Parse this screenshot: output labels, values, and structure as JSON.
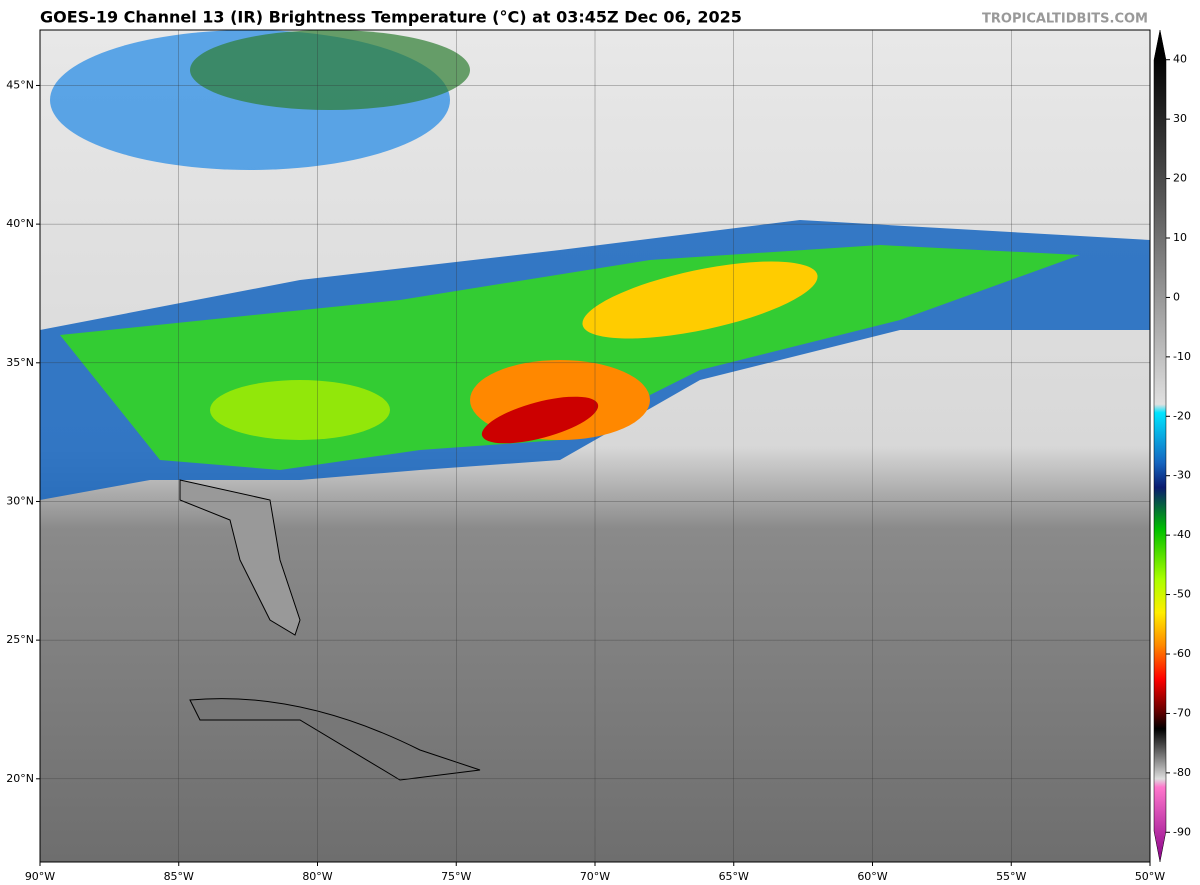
{
  "title": "GOES-19 Channel 13 (IR) Brightness Temperature (°C) at 03:45Z Dec 06, 2025",
  "watermark": "TROPICALTIDBITS.COM",
  "map": {
    "xlim": [
      -90,
      -50
    ],
    "ylim": [
      17,
      47
    ],
    "xticks": [
      {
        "value": -90,
        "label": "90°W"
      },
      {
        "value": -85,
        "label": "85°W"
      },
      {
        "value": -80,
        "label": "80°W"
      },
      {
        "value": -75,
        "label": "75°W"
      },
      {
        "value": -70,
        "label": "70°W"
      },
      {
        "value": -65,
        "label": "65°W"
      },
      {
        "value": -60,
        "label": "60°W"
      },
      {
        "value": -55,
        "label": "55°W"
      },
      {
        "value": -50,
        "label": "50°W"
      }
    ],
    "yticks": [
      {
        "value": 20,
        "label": "20°N"
      },
      {
        "value": 25,
        "label": "25°N"
      },
      {
        "value": 30,
        "label": "30°N"
      },
      {
        "value": 35,
        "label": "35°N"
      },
      {
        "value": 40,
        "label": "40°N"
      },
      {
        "value": 45,
        "label": "45°N"
      }
    ]
  },
  "colorbar": {
    "lim": [
      -95,
      45
    ],
    "ticks": [
      40,
      30,
      20,
      10,
      0,
      -10,
      -20,
      -30,
      -40,
      -50,
      -60,
      -70,
      -80,
      -90
    ]
  }
}
